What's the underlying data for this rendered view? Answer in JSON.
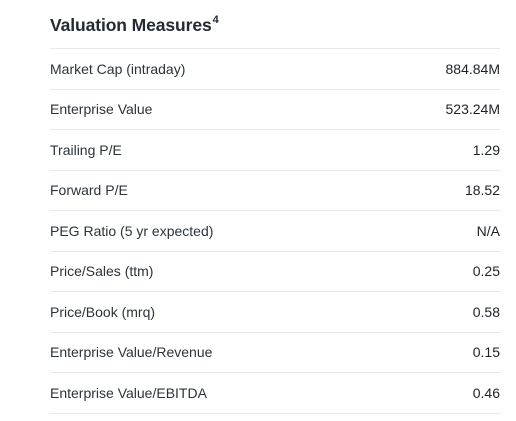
{
  "section": {
    "title": "Valuation Measures",
    "footnote": "4"
  },
  "rows": [
    {
      "label": "Market Cap (intraday)",
      "value": "884.84M"
    },
    {
      "label": "Enterprise Value",
      "value": "523.24M"
    },
    {
      "label": "Trailing P/E",
      "value": "1.29"
    },
    {
      "label": "Forward P/E",
      "value": "18.52"
    },
    {
      "label": "PEG Ratio (5 yr expected)",
      "value": "N/A"
    },
    {
      "label": "Price/Sales (ttm)",
      "value": "0.25"
    },
    {
      "label": "Price/Book (mrq)",
      "value": "0.58"
    },
    {
      "label": "Enterprise Value/Revenue",
      "value": "0.15"
    },
    {
      "label": "Enterprise Value/EBITDA",
      "value": "0.46"
    }
  ]
}
